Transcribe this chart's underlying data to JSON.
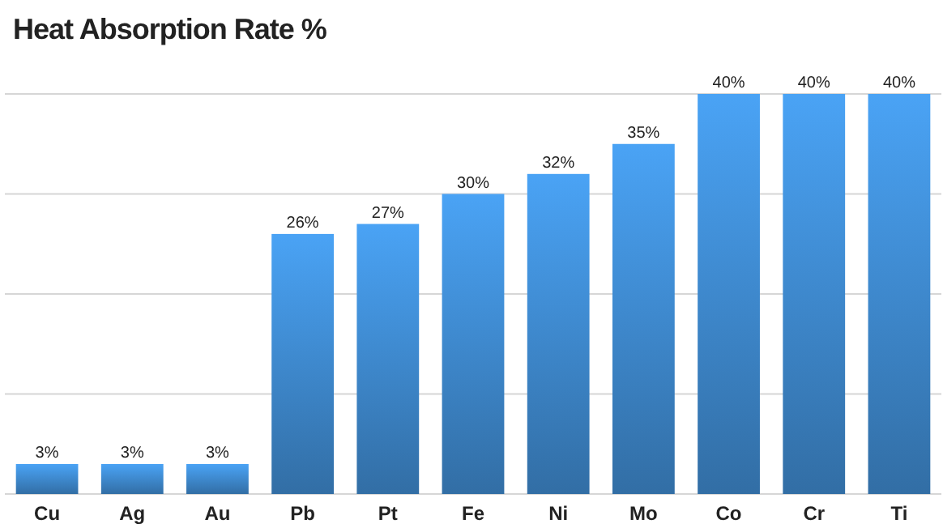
{
  "chart_data": {
    "type": "bar",
    "title": "Heat Absorption Rate %",
    "categories": [
      "Cu",
      "Ag",
      "Au",
      "Pb",
      "Pt",
      "Fe",
      "Ni",
      "Mo",
      "Co",
      "Cr",
      "Ti"
    ],
    "values": [
      3,
      3,
      3,
      26,
      27,
      30,
      32,
      35,
      40,
      40,
      40
    ],
    "value_labels": [
      "3%",
      "3%",
      "3%",
      "26%",
      "27%",
      "30%",
      "32%",
      "35%",
      "40%",
      "40%",
      "40%"
    ],
    "color": "#4aa3f5",
    "ylim": [
      0,
      40
    ],
    "yticks": [
      {
        "value": 0,
        "label": null
      },
      {
        "value": 10,
        "label": null
      },
      {
        "value": 20,
        "label": null
      },
      {
        "value": 30,
        "label": null
      },
      {
        "value": 40,
        "label": null
      }
    ],
    "tick_labels": "x",
    "grid": "y"
  }
}
